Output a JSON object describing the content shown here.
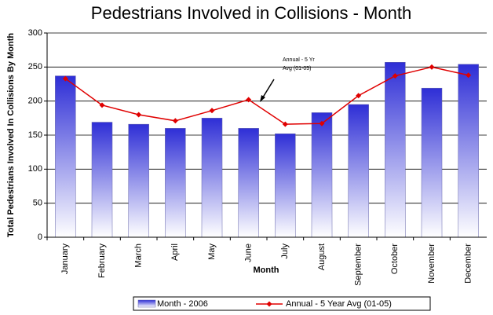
{
  "chart_data": {
    "type": "bar",
    "title": "Pedestrians Involved in Collisions - Month",
    "x_label": "Month",
    "y_label": "Total Pedestrians Involved In Collisions By Month",
    "categories": [
      "January",
      "February",
      "March",
      "April",
      "May",
      "June",
      "July",
      "August",
      "September",
      "October",
      "November",
      "December"
    ],
    "series": [
      {
        "name": "Month - 2006",
        "type": "bar",
        "color": "#2e2ed6",
        "values": [
          237,
          169,
          166,
          160,
          175,
          160,
          152,
          183,
          195,
          257,
          219,
          254
        ]
      },
      {
        "name": "Annual - 5 Year Avg (01-05)",
        "type": "line",
        "color": "#e00000",
        "values": [
          233,
          194,
          180,
          171,
          186,
          202,
          166,
          167,
          208,
          237,
          250,
          238
        ]
      }
    ],
    "annotation": {
      "lines": [
        "Annual  - 5 Yr",
        "Avg (01-05)"
      ]
    },
    "ylim": [
      0,
      300
    ],
    "yticks": [
      0,
      50,
      100,
      150,
      200,
      250,
      300
    ],
    "grid": true
  }
}
